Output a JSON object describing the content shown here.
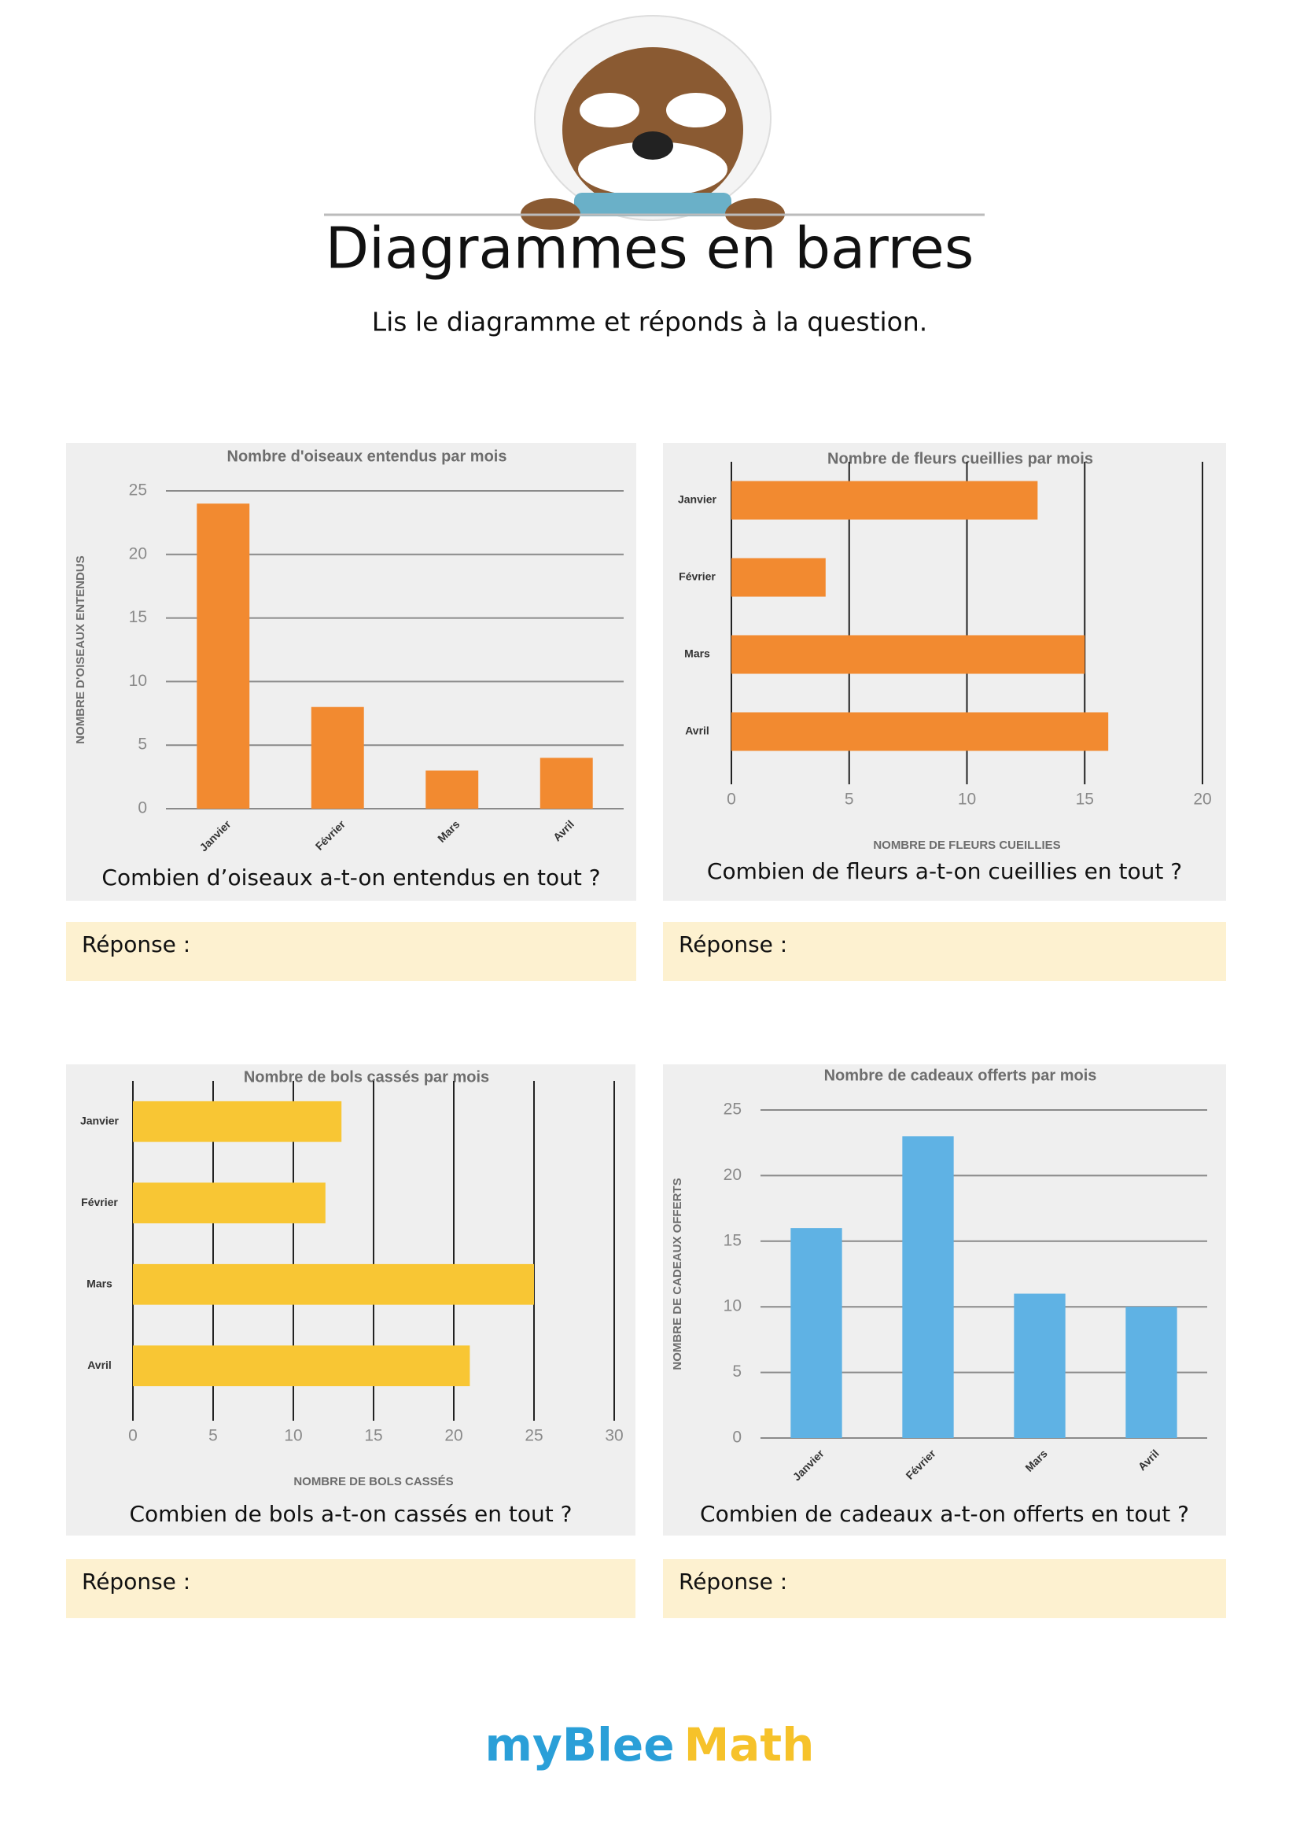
{
  "header": {
    "title": "Diagrammes en barres",
    "subtitle": "Lis le diagramme et réponds à la question."
  },
  "chart_data": [
    {
      "type": "bar",
      "title": "Nombre d'oiseaux entendus par mois",
      "y_label": "NOMBRE D'OISEAUX ENTENDUS",
      "categories": [
        "Janvier",
        "Février",
        "Mars",
        "Avril"
      ],
      "values": [
        24,
        8,
        3,
        4
      ],
      "color": "#f28a30",
      "ylim": [
        0,
        25
      ],
      "yticks": [
        0,
        5,
        10,
        15,
        20,
        25
      ],
      "grid": true
    },
    {
      "type": "barh",
      "title": "Nombre de fleurs cueillies par mois",
      "x_label": "NOMBRE DE FLEURS CUEILLIES",
      "categories": [
        "Janvier",
        "Février",
        "Mars",
        "Avril"
      ],
      "values": [
        13,
        4,
        15,
        16
      ],
      "color": "#f28a30",
      "xlim": [
        0,
        20
      ],
      "xticks": [
        0,
        5,
        10,
        15,
        20
      ],
      "grid": true
    },
    {
      "type": "barh",
      "title": "Nombre de bols cassés par mois",
      "x_label": "NOMBRE DE BOLS CASSÉS",
      "categories": [
        "Janvier",
        "Février",
        "Mars",
        "Avril"
      ],
      "values": [
        13,
        12,
        25,
        21
      ],
      "color": "#f8c634",
      "xlim": [
        0,
        30
      ],
      "xticks": [
        0,
        5,
        10,
        15,
        20,
        25,
        30
      ],
      "grid": true
    },
    {
      "type": "bar",
      "title": "Nombre de cadeaux offerts par mois",
      "y_label": "NOMBRE DE CADEAUX OFFERTS",
      "categories": [
        "Janvier",
        "Février",
        "Mars",
        "Avril"
      ],
      "values": [
        16,
        23,
        11,
        10
      ],
      "color": "#5fb2e4",
      "ylim": [
        0,
        25
      ],
      "yticks": [
        0,
        5,
        10,
        15,
        20,
        25
      ],
      "grid": true
    }
  ],
  "exercises": [
    {
      "question": "Combien d’oiseaux a-t-on entendus en tout ?",
      "answer": "Réponse :"
    },
    {
      "question": "Combien de fleurs a-t-on cueillies en tout ?",
      "answer": "Réponse :"
    },
    {
      "question": "Combien de bols a-t-on cassés en tout ?",
      "answer": "Réponse :"
    },
    {
      "question": "Combien de cadeaux a-t-on offerts en tout ?",
      "answer": "Réponse :"
    }
  ],
  "footer": {
    "brand_1": "myBlee",
    "brand_2": "Math"
  }
}
